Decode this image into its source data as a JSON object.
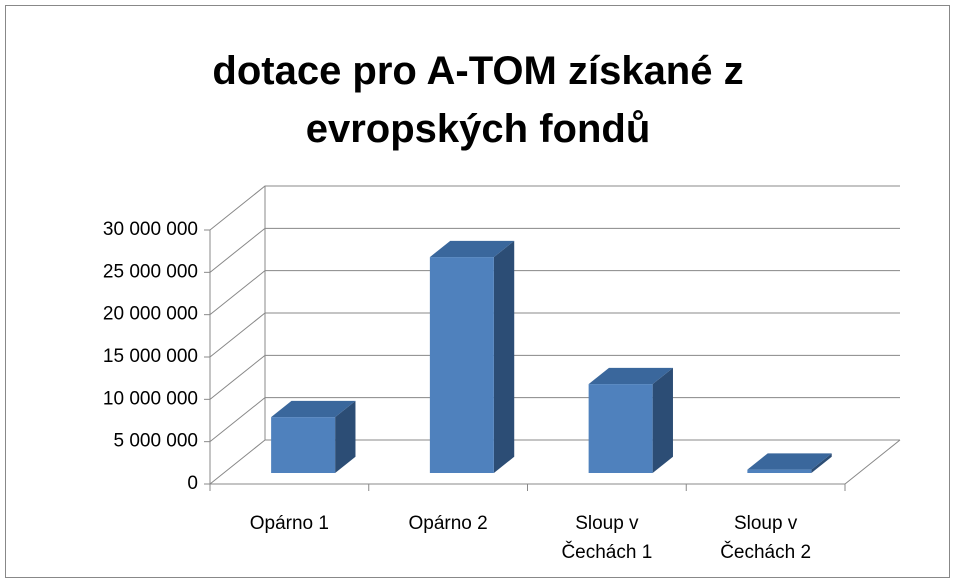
{
  "chart_data": {
    "type": "bar3d",
    "title": "dotace pro A-TOM získané z evropských fondů",
    "categories": [
      "Opárno 1",
      "Opárno 2",
      "Sloup v Čechách 1",
      "Sloup v Čechách 2"
    ],
    "values": [
      6600000,
      25500000,
      10500000,
      400000
    ],
    "color": "#4f81bd",
    "ylim": [
      0,
      30000000
    ],
    "yticks": [
      0,
      {
        "value": 5000000,
        "label": "5 000 000"
      },
      {
        "value": 10000000,
        "label": "10 000 000"
      },
      {
        "value": 15000000,
        "label": "15 000 000"
      },
      {
        "value": 20000000,
        "label": "20 000 000"
      },
      {
        "value": 25000000,
        "label": "25 000 000"
      },
      {
        "value": 30000000,
        "label": "30 000 000"
      }
    ],
    "grid": true
  }
}
